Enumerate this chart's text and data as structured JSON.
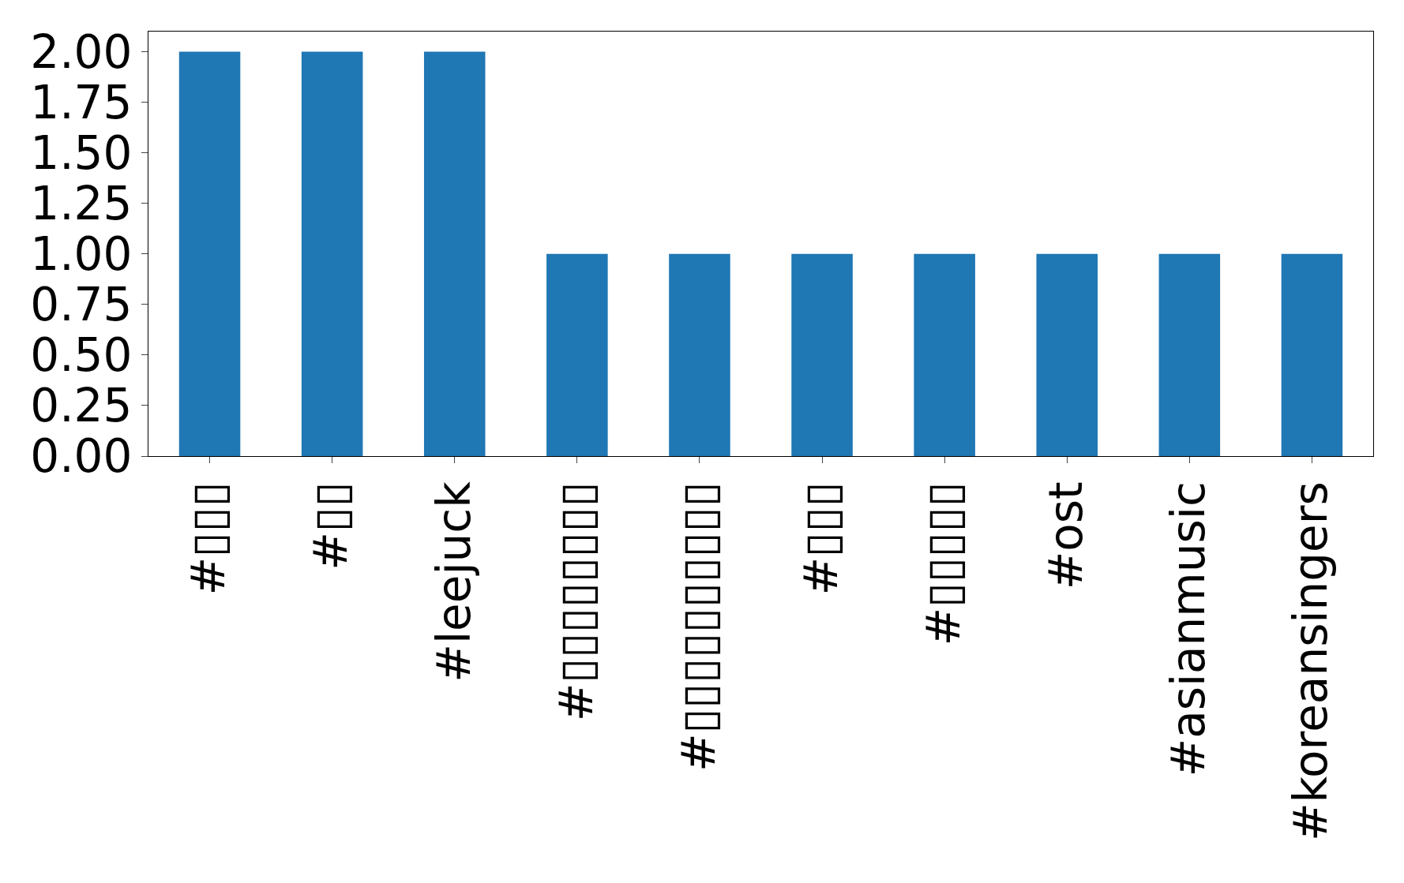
{
  "chart_data": {
    "type": "bar",
    "categories": [
      "#▯▯▯",
      "#▯▯",
      "#leejuck",
      "#▯▯▯▯▯▯▯▯",
      "#▯▯▯▯▯▯▯▯▯▯",
      "#▯▯▯",
      "#▯▯▯▯▯",
      "#ost",
      "#asianmusic",
      "#koreansingers"
    ],
    "values": [
      2,
      2,
      2,
      1,
      1,
      1,
      1,
      1,
      1,
      1
    ],
    "color": "#1f77b4",
    "ylim": [
      0,
      2.1
    ],
    "yticks": [
      {
        "value": 0,
        "label": "0.00"
      },
      {
        "value": 0.25,
        "label": "0.25"
      },
      {
        "value": 0.5,
        "label": "0.50"
      },
      {
        "value": 0.75,
        "label": "0.75"
      },
      {
        "value": 1,
        "label": "1.00"
      },
      {
        "value": 1.25,
        "label": "1.25"
      },
      {
        "value": 1.5,
        "label": "1.50"
      },
      {
        "value": 1.75,
        "label": "1.75"
      },
      {
        "value": 2,
        "label": "2.00"
      }
    ]
  }
}
